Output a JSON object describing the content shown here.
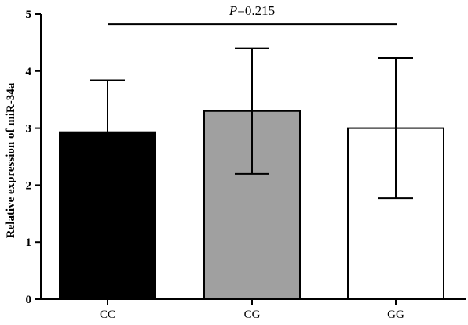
{
  "chart_data": {
    "type": "bar",
    "categories": [
      "CC",
      "CG",
      "GG"
    ],
    "values": [
      2.93,
      3.3,
      3.0
    ],
    "error": [
      0.91,
      1.1,
      1.23
    ],
    "bar_colors": [
      "#000000",
      "#a0a0a0",
      "#ffffff"
    ],
    "ylabel": "Relative expression of miR-34a",
    "xlabel": "",
    "ylim": [
      0,
      5
    ],
    "yticks": [
      "0",
      "1",
      "2",
      "3",
      "4",
      "5"
    ],
    "grid": false,
    "annotation": {
      "italic_prefix": "P",
      "text": "=0.215",
      "y_value": 4.82
    }
  }
}
